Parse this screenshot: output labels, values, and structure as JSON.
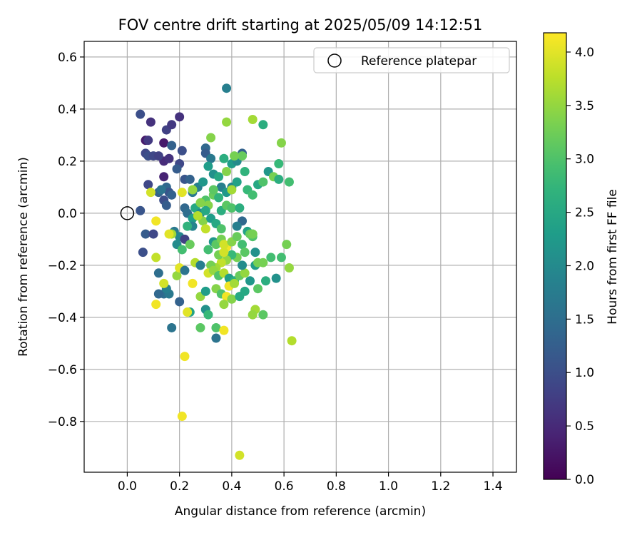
{
  "chart_data": {
    "type": "scatter",
    "title": "FOV centre drift starting at 2025/05/09 14:12:51",
    "xlabel": "Angular distance from reference (arcmin)",
    "ylabel": "Rotation from reference (arcmin)",
    "xlim": [
      -0.165,
      1.49
    ],
    "ylim": [
      -0.995,
      0.66
    ],
    "xticks": [
      0.0,
      0.2,
      0.4,
      0.6,
      0.8,
      1.0,
      1.2,
      1.4
    ],
    "yticks": [
      -0.8,
      -0.6,
      -0.4,
      -0.2,
      0.0,
      0.2,
      0.4,
      0.6
    ],
    "xtick_labels": [
      "0.0",
      "0.2",
      "0.4",
      "0.6",
      "0.8",
      "1.0",
      "1.2",
      "1.4"
    ],
    "ytick_labels": [
      "−0.8",
      "−0.6",
      "−0.4",
      "−0.2",
      "0.0",
      "0.2",
      "0.4",
      "0.6"
    ],
    "grid": true,
    "legend": {
      "position": "top-right",
      "entries": [
        "Reference platepar"
      ]
    },
    "reference_point": {
      "x": 0.0,
      "y": 0.0,
      "marker": "open-circle"
    },
    "colorbar": {
      "label": "Hours from first FF file",
      "colormap": "viridis",
      "range": [
        0.0,
        4.18
      ],
      "ticks": [
        0.0,
        0.5,
        1.0,
        1.5,
        2.0,
        2.5,
        3.0,
        3.5,
        4.0
      ],
      "tick_labels": [
        "0.0",
        "0.5",
        "1.0",
        "1.5",
        "2.0",
        "2.5",
        "3.0",
        "3.5",
        "4.0"
      ]
    },
    "series": [
      {
        "points": [
          [
            0.05,
            0.38,
            1.0
          ],
          [
            0.09,
            0.35,
            0.6
          ],
          [
            0.07,
            0.28,
            0.3
          ],
          [
            0.08,
            0.28,
            0.7
          ],
          [
            0.07,
            0.23,
            0.9
          ],
          [
            0.08,
            0.22,
            1.0
          ],
          [
            0.1,
            0.22,
            0.9
          ],
          [
            0.14,
            0.27,
            0.3
          ],
          [
            0.15,
            0.32,
            0.8
          ],
          [
            0.17,
            0.34,
            0.7
          ],
          [
            0.2,
            0.37,
            0.6
          ],
          [
            0.14,
            0.2,
            0.5
          ],
          [
            0.16,
            0.21,
            0.6
          ],
          [
            0.14,
            0.14,
            0.4
          ],
          [
            0.12,
            0.22,
            0.8
          ],
          [
            0.17,
            0.26,
            1.3
          ],
          [
            0.21,
            0.24,
            1.0
          ],
          [
            0.2,
            0.19,
            0.9
          ],
          [
            0.19,
            0.17,
            1.2
          ],
          [
            0.08,
            0.11,
            0.9
          ],
          [
            0.12,
            0.08,
            1.3
          ],
          [
            0.15,
            0.1,
            1.4
          ],
          [
            0.16,
            0.08,
            1.1
          ],
          [
            0.14,
            0.05,
            1.0
          ],
          [
            0.15,
            0.03,
            1.2
          ],
          [
            0.13,
            0.09,
            1.6
          ],
          [
            0.17,
            0.07,
            1.3
          ],
          [
            0.05,
            0.01,
            1.1
          ],
          [
            0.07,
            -0.08,
            1.2
          ],
          [
            0.1,
            -0.08,
            0.9
          ],
          [
            0.06,
            -0.15,
            1.0
          ],
          [
            0.22,
            0.13,
            1.1
          ],
          [
            0.24,
            0.13,
            1.3
          ],
          [
            0.22,
            0.02,
            1.4
          ],
          [
            0.23,
            0.0,
            1.5
          ],
          [
            0.25,
            0.08,
            1.7
          ],
          [
            0.27,
            0.1,
            1.8
          ],
          [
            0.29,
            0.12,
            2.2
          ],
          [
            0.3,
            0.25,
            1.4
          ],
          [
            0.3,
            0.23,
            1.2
          ],
          [
            0.32,
            0.21,
            1.7
          ],
          [
            0.31,
            0.18,
            2.3
          ],
          [
            0.33,
            0.15,
            2.1
          ],
          [
            0.35,
            0.14,
            2.5
          ],
          [
            0.37,
            0.21,
            2.6
          ],
          [
            0.38,
            0.48,
            1.8
          ],
          [
            0.4,
            0.19,
            2.3
          ],
          [
            0.42,
            0.2,
            2.0
          ],
          [
            0.44,
            0.23,
            1.3
          ],
          [
            0.36,
            0.1,
            1.8
          ],
          [
            0.38,
            0.08,
            2.2
          ],
          [
            0.4,
            0.1,
            1.9
          ],
          [
            0.42,
            0.12,
            2.4
          ],
          [
            0.45,
            0.16,
            2.7
          ],
          [
            0.46,
            0.09,
            2.8
          ],
          [
            0.48,
            0.07,
            2.9
          ],
          [
            0.5,
            0.11,
            2.5
          ],
          [
            0.52,
            0.12,
            3.0
          ],
          [
            0.54,
            0.16,
            2.2
          ],
          [
            0.56,
            0.14,
            3.3
          ],
          [
            0.58,
            0.19,
            2.8
          ],
          [
            0.58,
            0.13,
            2.6
          ],
          [
            0.62,
            0.12,
            2.9
          ],
          [
            0.59,
            0.27,
            3.4
          ],
          [
            0.52,
            0.34,
            2.6
          ],
          [
            0.48,
            0.36,
            3.6
          ],
          [
            0.38,
            0.35,
            3.5
          ],
          [
            0.32,
            0.29,
            3.4
          ],
          [
            0.44,
            0.22,
            3.2
          ],
          [
            0.41,
            0.22,
            3.3
          ],
          [
            0.4,
            0.09,
            3.6
          ],
          [
            0.3,
            0.05,
            3.0
          ],
          [
            0.31,
            0.03,
            3.4
          ],
          [
            0.33,
            0.07,
            3.2
          ],
          [
            0.36,
            0.01,
            2.6
          ],
          [
            0.38,
            0.03,
            3.1
          ],
          [
            0.4,
            0.02,
            3.0
          ],
          [
            0.44,
            -0.03,
            1.4
          ],
          [
            0.42,
            -0.05,
            1.8
          ],
          [
            0.46,
            -0.07,
            2.4
          ],
          [
            0.48,
            -0.09,
            3.0
          ],
          [
            0.26,
            0.02,
            2.5
          ],
          [
            0.28,
            0.0,
            2.0
          ],
          [
            0.25,
            -0.02,
            2.3
          ],
          [
            0.25,
            -0.05,
            1.9
          ],
          [
            0.29,
            -0.03,
            3.4
          ],
          [
            0.3,
            -0.06,
            3.8
          ],
          [
            0.32,
            -0.02,
            2.3
          ],
          [
            0.34,
            -0.04,
            2.5
          ],
          [
            0.36,
            -0.06,
            3.0
          ],
          [
            0.33,
            -0.11,
            2.2
          ],
          [
            0.31,
            -0.14,
            2.9
          ],
          [
            0.34,
            -0.12,
            3.1
          ],
          [
            0.36,
            -0.1,
            3.3
          ],
          [
            0.38,
            -0.13,
            4.1
          ],
          [
            0.37,
            -0.12,
            3.9
          ],
          [
            0.4,
            -0.11,
            3.4
          ],
          [
            0.42,
            -0.09,
            3.2
          ],
          [
            0.44,
            -0.12,
            2.9
          ],
          [
            0.45,
            -0.15,
            3.1
          ],
          [
            0.42,
            -0.17,
            3.3
          ],
          [
            0.4,
            -0.16,
            2.8
          ],
          [
            0.38,
            -0.18,
            3.5
          ],
          [
            0.36,
            -0.19,
            3.8
          ],
          [
            0.34,
            -0.21,
            3.6
          ],
          [
            0.32,
            -0.2,
            3.3
          ],
          [
            0.31,
            -0.23,
            3.9
          ],
          [
            0.33,
            -0.22,
            3.5
          ],
          [
            0.35,
            -0.24,
            3.0
          ],
          [
            0.37,
            -0.23,
            3.7
          ],
          [
            0.39,
            -0.25,
            2.3
          ],
          [
            0.41,
            -0.26,
            2.6
          ],
          [
            0.43,
            -0.24,
            3.2
          ],
          [
            0.45,
            -0.23,
            3.5
          ],
          [
            0.47,
            -0.26,
            2.2
          ],
          [
            0.49,
            -0.2,
            2.3
          ],
          [
            0.5,
            -0.19,
            3.3
          ],
          [
            0.52,
            -0.19,
            3.3
          ],
          [
            0.49,
            -0.15,
            2.1
          ],
          [
            0.55,
            -0.17,
            2.9
          ],
          [
            0.59,
            -0.17,
            2.9
          ],
          [
            0.61,
            -0.12,
            3.3
          ],
          [
            0.62,
            -0.21,
            3.5
          ],
          [
            0.57,
            -0.25,
            2.1
          ],
          [
            0.53,
            -0.26,
            2.6
          ],
          [
            0.5,
            -0.29,
            3.1
          ],
          [
            0.47,
            -0.08,
            3.2
          ],
          [
            0.48,
            -0.08,
            3.4
          ],
          [
            0.18,
            -0.07,
            1.7
          ],
          [
            0.2,
            -0.09,
            1.9
          ],
          [
            0.22,
            -0.1,
            0.8
          ],
          [
            0.19,
            -0.12,
            2.0
          ],
          [
            0.21,
            -0.14,
            2.9
          ],
          [
            0.17,
            -0.08,
            3.6
          ],
          [
            0.16,
            -0.08,
            4.0
          ],
          [
            0.11,
            -0.17,
            3.8
          ],
          [
            0.14,
            -0.31,
            1.5
          ],
          [
            0.16,
            -0.31,
            1.7
          ],
          [
            0.15,
            -0.29,
            1.8
          ],
          [
            0.12,
            -0.23,
            1.5
          ],
          [
            0.12,
            -0.31,
            1.4
          ],
          [
            0.14,
            -0.27,
            3.9
          ],
          [
            0.11,
            -0.35,
            4.1
          ],
          [
            0.17,
            -0.44,
            1.6
          ],
          [
            0.2,
            -0.34,
            1.3
          ],
          [
            0.19,
            -0.24,
            3.5
          ],
          [
            0.2,
            -0.21,
            4.0
          ],
          [
            0.22,
            -0.22,
            1.6
          ],
          [
            0.25,
            -0.27,
            4.1
          ],
          [
            0.26,
            -0.19,
            3.7
          ],
          [
            0.28,
            -0.2,
            1.8
          ],
          [
            0.28,
            -0.32,
            3.5
          ],
          [
            0.3,
            -0.3,
            2.3
          ],
          [
            0.3,
            -0.37,
            2.1
          ],
          [
            0.31,
            -0.39,
            2.8
          ],
          [
            0.24,
            -0.38,
            2.4
          ],
          [
            0.23,
            -0.38,
            4.0
          ],
          [
            0.28,
            -0.44,
            3.1
          ],
          [
            0.34,
            -0.29,
            3.4
          ],
          [
            0.36,
            -0.31,
            3.0
          ],
          [
            0.38,
            -0.32,
            4.1
          ],
          [
            0.37,
            -0.35,
            3.5
          ],
          [
            0.39,
            -0.28,
            2.4
          ],
          [
            0.39,
            -0.28,
            4.1
          ],
          [
            0.4,
            -0.33,
            3.4
          ],
          [
            0.41,
            -0.27,
            3.6
          ],
          [
            0.43,
            -0.32,
            2.5
          ],
          [
            0.45,
            -0.3,
            2.5
          ],
          [
            0.49,
            -0.37,
            3.6
          ],
          [
            0.48,
            -0.39,
            3.5
          ],
          [
            0.52,
            -0.39,
            3.1
          ],
          [
            0.34,
            -0.44,
            3.0
          ],
          [
            0.34,
            -0.48,
            1.6
          ],
          [
            0.37,
            -0.45,
            4.1
          ],
          [
            0.63,
            -0.49,
            3.7
          ],
          [
            0.22,
            -0.55,
            4.1
          ],
          [
            0.21,
            -0.78,
            4.1
          ],
          [
            0.43,
            -0.93,
            3.9
          ],
          [
            0.11,
            -0.03,
            4.1
          ],
          [
            0.09,
            0.08,
            3.9
          ],
          [
            0.21,
            0.08,
            4.0
          ],
          [
            0.25,
            0.09,
            3.5
          ],
          [
            0.23,
            -0.05,
            2.7
          ],
          [
            0.24,
            -0.12,
            3.2
          ],
          [
            0.27,
            -0.01,
            3.7
          ],
          [
            0.28,
            0.04,
            3.4
          ],
          [
            0.3,
            0.01,
            2.5
          ],
          [
            0.33,
            0.09,
            3.1
          ],
          [
            0.35,
            0.06,
            2.7
          ],
          [
            0.35,
            -0.16,
            3.3
          ],
          [
            0.37,
            -0.15,
            3.9
          ],
          [
            0.38,
            0.16,
            3.4
          ],
          [
            0.43,
            0.02,
            2.6
          ],
          [
            0.48,
            -0.08,
            3.3
          ],
          [
            0.44,
            -0.2,
            2.0
          ]
        ]
      }
    ]
  }
}
